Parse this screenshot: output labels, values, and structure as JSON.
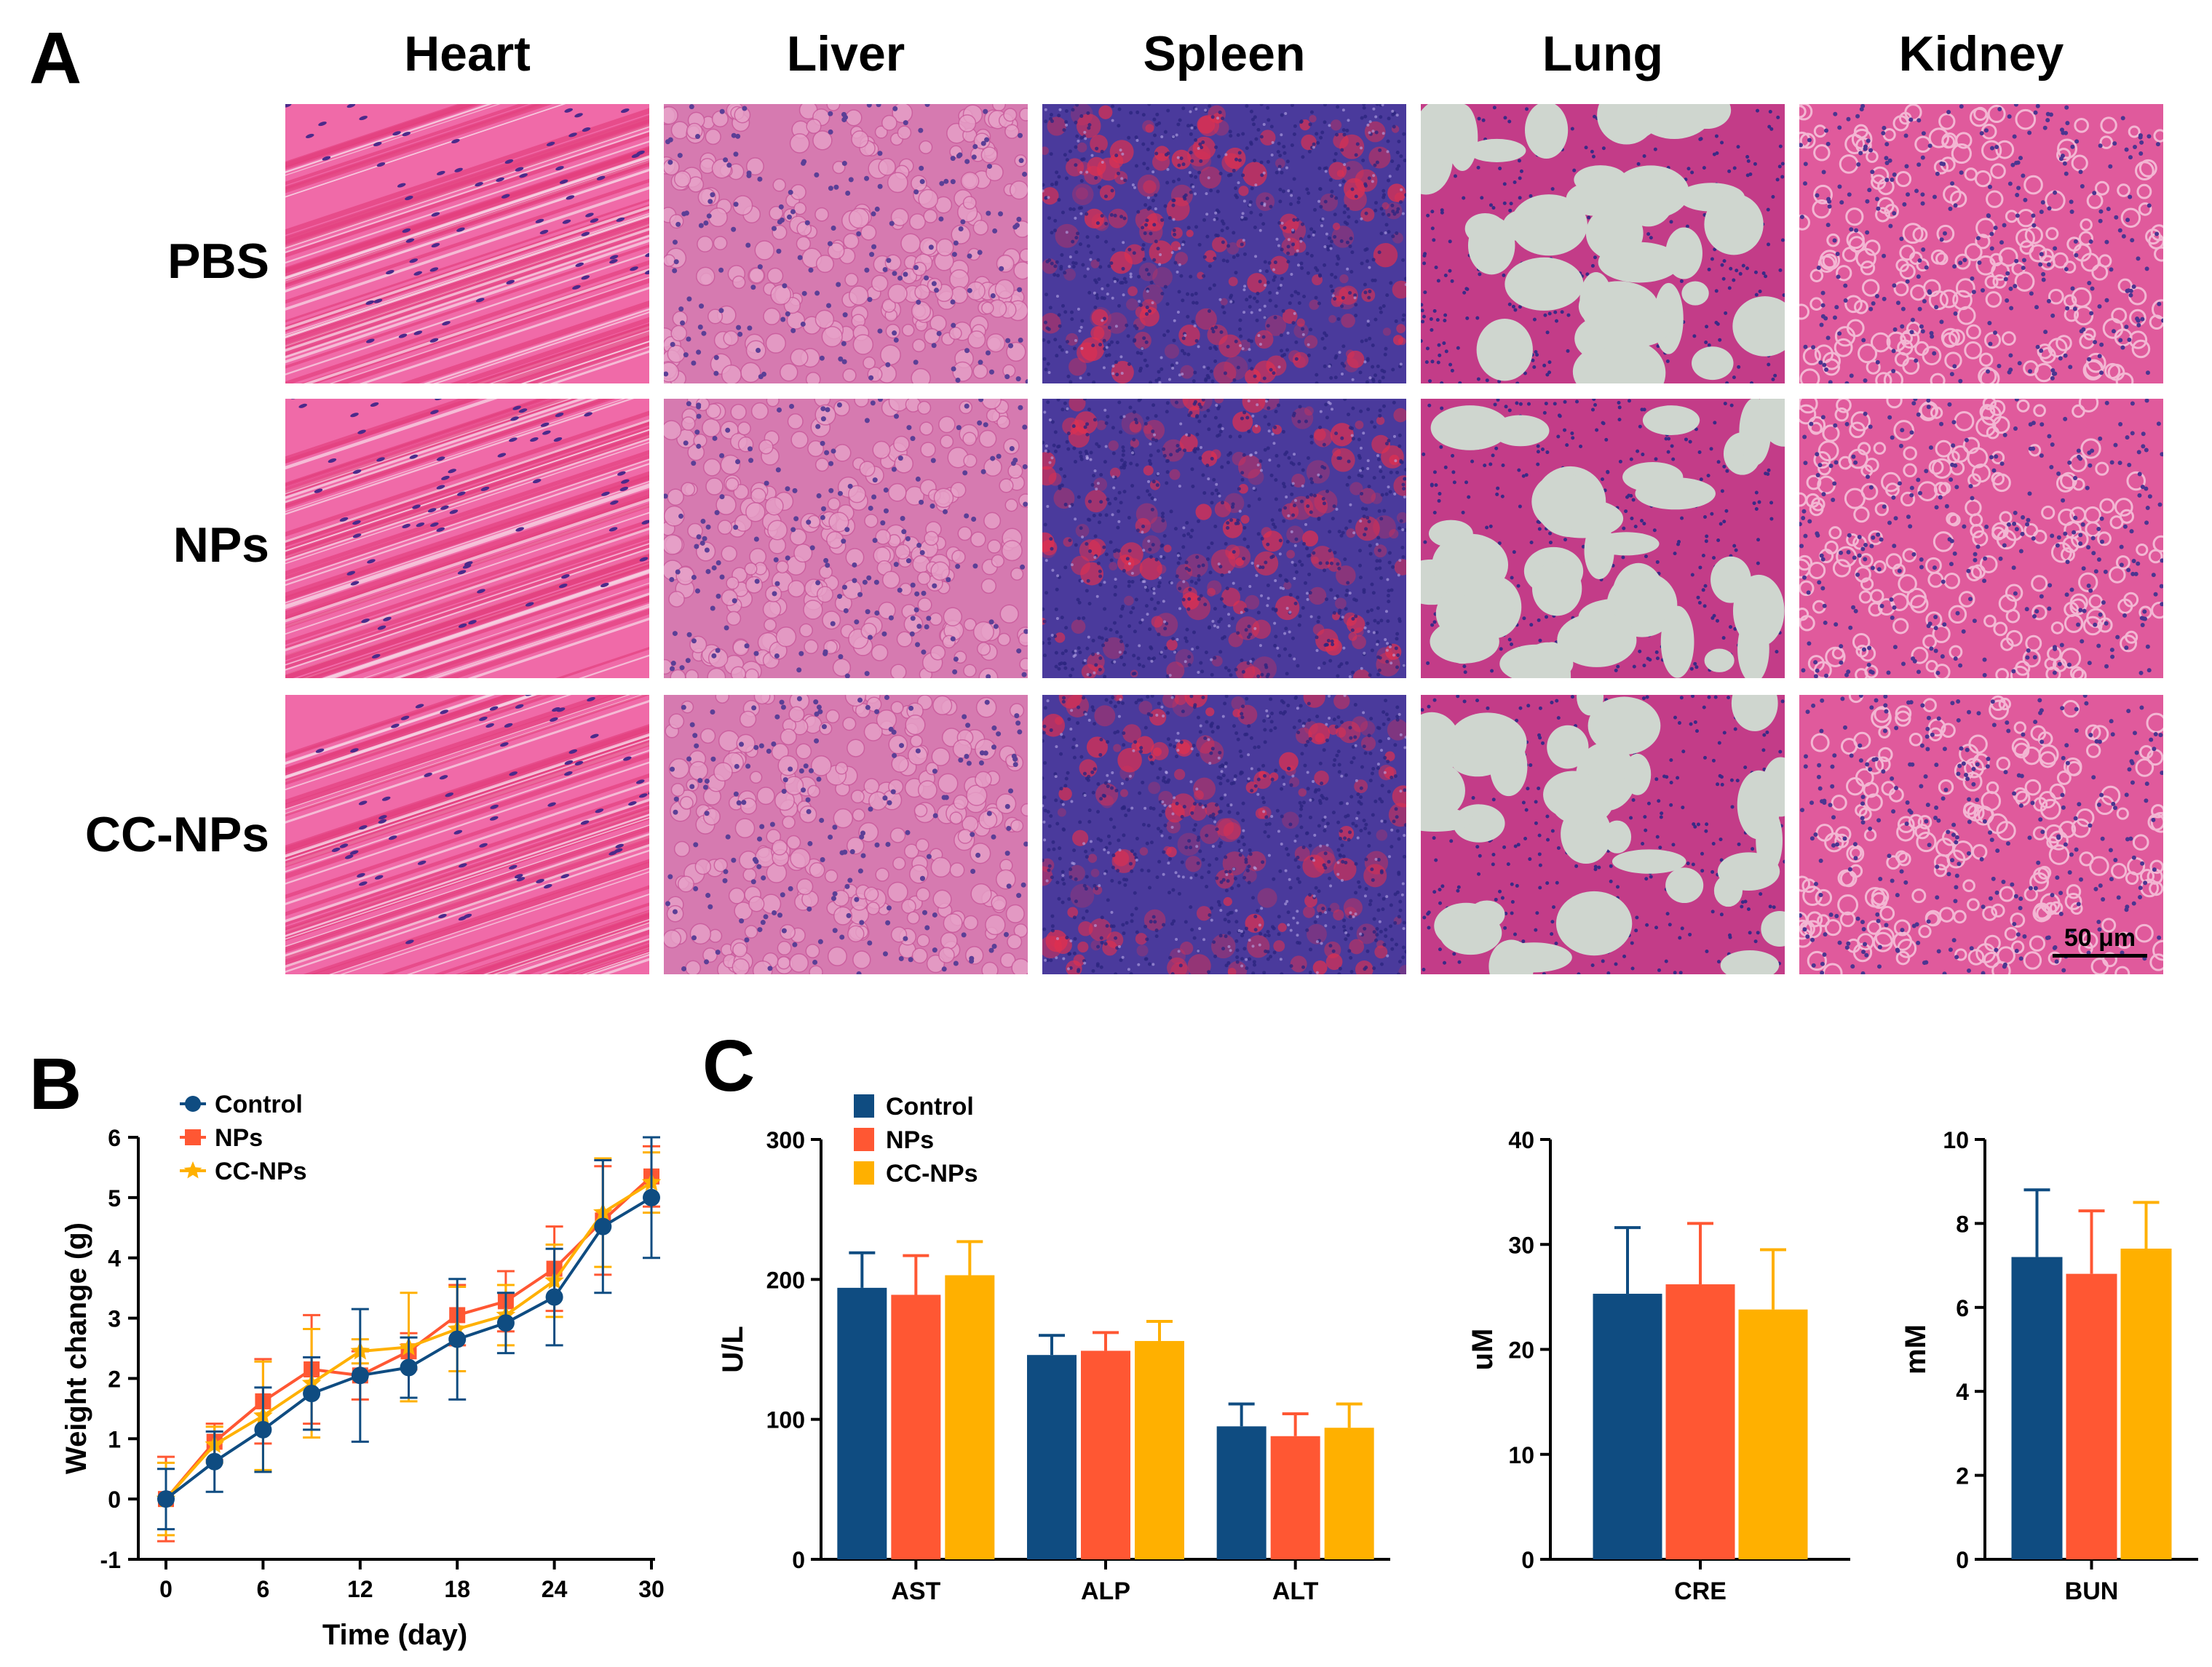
{
  "panel_a": {
    "letter": "A",
    "columns": [
      "Heart",
      "Liver",
      "Spleen",
      "Lung",
      "Kidney"
    ],
    "rows": [
      "PBS",
      "NPs",
      "CC-NPs"
    ],
    "scale_bar": "50 μm"
  },
  "panel_b": {
    "letter": "B"
  },
  "panel_c": {
    "letter": "C"
  },
  "colors": {
    "control": "#0f4c81",
    "nps": "#ff5733",
    "ccnps": "#ffb000"
  },
  "chart_data": [
    {
      "id": "weight",
      "type": "line",
      "title": "",
      "xlabel": "Time (day)",
      "ylabel": "Weight change (g)",
      "xlim": [
        0,
        30
      ],
      "ylim": [
        -1,
        6
      ],
      "xticks": [
        0,
        6,
        12,
        18,
        24,
        30
      ],
      "yticks": [
        -1,
        0,
        1,
        2,
        3,
        4,
        5,
        6
      ],
      "legend": [
        "Control",
        "NPs",
        "CC-NPs"
      ],
      "x": [
        0,
        3,
        6,
        9,
        12,
        15,
        18,
        21,
        24,
        27,
        30
      ],
      "series": [
        {
          "name": "Control",
          "values": [
            0,
            0.62,
            1.15,
            1.75,
            2.05,
            2.18,
            2.65,
            2.92,
            3.35,
            4.52,
            5.0
          ],
          "err": [
            0.5,
            0.5,
            0.7,
            0.6,
            1.1,
            0.5,
            1.0,
            0.5,
            0.8,
            1.1,
            1.0
          ]
        },
        {
          "name": "NPs",
          "values": [
            0,
            0.95,
            1.62,
            2.15,
            2.05,
            2.45,
            3.05,
            3.28,
            3.82,
            4.62,
            5.35
          ],
          "err": [
            0.7,
            0.3,
            0.7,
            0.9,
            0.4,
            0.3,
            0.5,
            0.5,
            0.7,
            0.9,
            0.5
          ]
        },
        {
          "name": "CC-NPs",
          "values": [
            0,
            0.9,
            1.38,
            1.92,
            2.45,
            2.52,
            2.82,
            3.05,
            3.62,
            4.75,
            5.25
          ],
          "err": [
            0.6,
            0.3,
            0.9,
            0.9,
            0.2,
            0.9,
            0.7,
            0.5,
            0.6,
            0.9,
            0.5
          ]
        }
      ]
    },
    {
      "id": "enzymes",
      "type": "bar",
      "title": "",
      "xlabel": "",
      "ylabel": "U/L",
      "ylim": [
        0,
        300
      ],
      "yticks": [
        0,
        100,
        200,
        300
      ],
      "categories": [
        "AST",
        "ALP",
        "ALT"
      ],
      "legend": [
        "Control",
        "NPs",
        "CC-NPs"
      ],
      "series": [
        {
          "name": "Control",
          "values": [
            194,
            146,
            95
          ],
          "err": [
            25,
            14,
            16
          ]
        },
        {
          "name": "NPs",
          "values": [
            189,
            149,
            88
          ],
          "err": [
            28,
            13,
            16
          ]
        },
        {
          "name": "CC-NPs",
          "values": [
            203,
            156,
            94
          ],
          "err": [
            24,
            14,
            17
          ]
        }
      ]
    },
    {
      "id": "cre",
      "type": "bar",
      "title": "",
      "xlabel": "",
      "ylabel": "uM",
      "ylim": [
        0,
        40
      ],
      "yticks": [
        0,
        10,
        20,
        30,
        40
      ],
      "categories": [
        "CRE"
      ],
      "series": [
        {
          "name": "Control",
          "values": [
            25.3
          ],
          "err": [
            6.3
          ]
        },
        {
          "name": "NPs",
          "values": [
            26.2
          ],
          "err": [
            5.8
          ]
        },
        {
          "name": "CC-NPs",
          "values": [
            23.8
          ],
          "err": [
            5.7
          ]
        }
      ]
    },
    {
      "id": "bun",
      "type": "bar",
      "title": "",
      "xlabel": "",
      "ylabel": "mM",
      "ylim": [
        0,
        10
      ],
      "yticks": [
        0,
        2,
        4,
        6,
        8,
        10
      ],
      "categories": [
        "BUN"
      ],
      "series": [
        {
          "name": "Control",
          "values": [
            7.2
          ],
          "err": [
            1.6
          ]
        },
        {
          "name": "NPs",
          "values": [
            6.8
          ],
          "err": [
            1.5
          ]
        },
        {
          "name": "CC-NPs",
          "values": [
            7.4
          ],
          "err": [
            1.1
          ]
        }
      ]
    }
  ]
}
